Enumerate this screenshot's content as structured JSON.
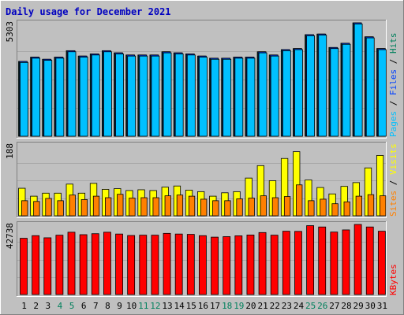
{
  "chart_data": {
    "type": "bar",
    "title": "Daily usage for December 2021",
    "days": [
      "1",
      "2",
      "3",
      "4",
      "5",
      "6",
      "7",
      "8",
      "9",
      "10",
      "11",
      "12",
      "13",
      "14",
      "15",
      "16",
      "17",
      "18",
      "19",
      "20",
      "21",
      "22",
      "23",
      "24",
      "25",
      "26",
      "27",
      "28",
      "29",
      "30",
      "31"
    ],
    "weekend_days": [
      4,
      5,
      11,
      12,
      18,
      19,
      25,
      26
    ],
    "colors": {
      "background": "#c0c0c0",
      "title": "#0000c0",
      "axis_text": "#000000",
      "weekend_text": "#00805c",
      "hits": "#00805c",
      "files": "#0040ff",
      "pages": "#00c0ff",
      "visits": "#ffff00",
      "sites": "#ff8000",
      "kbytes": "#ff0000"
    },
    "panels": [
      {
        "id": "traffic",
        "ymax": 5303,
        "ymax_label": "5303",
        "legend": [
          {
            "text": "Pages",
            "color": "#00c0ff"
          },
          {
            "text": " / ",
            "color": "#000000"
          },
          {
            "text": "Files",
            "color": "#0040ff"
          },
          {
            "text": " / ",
            "color": "#000000"
          },
          {
            "text": "Hits",
            "color": "#00805c"
          }
        ],
        "series": [
          {
            "name": "Hits",
            "values": [
              3500,
              3700,
              3600,
              3700,
              4000,
              3750,
              3850,
              4000,
              3900,
              3800,
              3800,
              3800,
              3950,
              3900,
              3850,
              3750,
              3650,
              3650,
              3700,
              3700,
              3950,
              3800,
              4050,
              4100,
              4750,
              4780,
              4150,
              4350,
              5303,
              4650,
              4100
            ]
          },
          {
            "name": "Files",
            "values": [
              3500,
              3700,
              3600,
              3700,
              4000,
              3750,
              3850,
              4000,
              3900,
              3800,
              3800,
              3800,
              3950,
              3900,
              3850,
              3750,
              3650,
              3650,
              3700,
              3700,
              3950,
              3800,
              4050,
              4100,
              4750,
              4780,
              4150,
              4350,
              5303,
              4650,
              4100
            ]
          },
          {
            "name": "Pages",
            "values": [
              3450,
              3650,
              3550,
              3650,
              3950,
              3700,
              3800,
              3950,
              3850,
              3750,
              3750,
              3750,
              3900,
              3850,
              3800,
              3700,
              3600,
              3600,
              3650,
              3650,
              3900,
              3750,
              4000,
              4050,
              4700,
              4730,
              4100,
              4300,
              5250,
              4600,
              4050
            ]
          }
        ]
      },
      {
        "id": "visitors",
        "ymax": 188,
        "ymax_label": "188",
        "legend": [
          {
            "text": "Sites",
            "color": "#ff8000"
          },
          {
            "text": " / ",
            "color": "#000000"
          },
          {
            "text": "Visits",
            "color": "#ffff00"
          }
        ],
        "series": [
          {
            "name": "Visits",
            "values": [
              73,
              52,
              60,
              60,
              84,
              60,
              86,
              70,
              72,
              67,
              69,
              67,
              76,
              79,
              68,
              64,
              52,
              61,
              64,
              100,
              133,
              93,
              152,
              170,
              95,
              75,
              58,
              78,
              88,
              127,
              160
            ]
          },
          {
            "name": "Sites",
            "values": [
              40,
              38,
              46,
              40,
              55,
              43,
              52,
              48,
              57,
              47,
              48,
              48,
              53,
              55,
              52,
              44,
              40,
              40,
              45,
              47,
              53,
              48,
              51,
              82,
              40,
              44,
              32,
              37,
              52,
              56,
              53
            ]
          }
        ]
      },
      {
        "id": "volume",
        "ymax": 42738,
        "ymax_label": "42738",
        "legend": [
          {
            "text": "KBytes",
            "color": "#ff0000"
          }
        ],
        "series": [
          {
            "name": "KBytes",
            "values": [
              34300,
              35900,
              34600,
              36200,
              38000,
              36500,
              37100,
              38000,
              36900,
              36000,
              36200,
              36200,
              37300,
              36900,
              36700,
              35900,
              35000,
              35300,
              35800,
              36300,
              37800,
              36200,
              38600,
              38500,
              42000,
              41200,
              38100,
              39400,
              42738,
              41200,
              38600
            ]
          }
        ]
      }
    ]
  }
}
